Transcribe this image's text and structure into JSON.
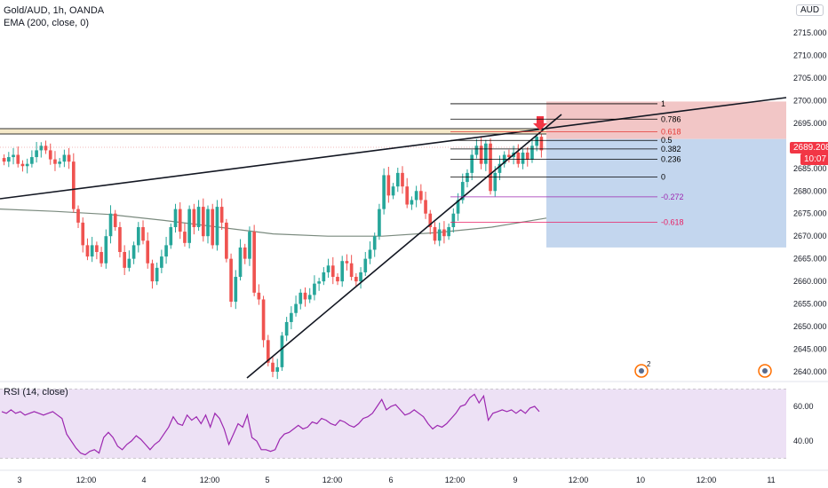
{
  "header": {
    "symbol_line": "Gold/AUD, 1h, OANDA",
    "ema_line": "EMA (200, close, 0)",
    "rsi_line": "RSI (14, close)",
    "currency_button": "AUD"
  },
  "price_axis": {
    "ticks": [
      "2715.000",
      "2710.000",
      "2705.000",
      "2700.000",
      "2695.000",
      "2685.000",
      "2680.000",
      "2675.000",
      "2670.000",
      "2665.000",
      "2660.000",
      "2655.000",
      "2650.000",
      "2645.000",
      "2640.000"
    ],
    "current_price_label": "2689.208",
    "countdown_label": "10:07"
  },
  "rsi_axis": {
    "ticks": [
      "60.00",
      "40.00"
    ]
  },
  "time_axis": {
    "labels": [
      "3",
      "12:00",
      "4",
      "12:00",
      "5",
      "12:00",
      "6",
      "12:00",
      "9",
      "12:00",
      "10",
      "12:00",
      "11"
    ]
  },
  "fib_levels": [
    {
      "label": "1",
      "price": 2699.3,
      "color": "#000000"
    },
    {
      "label": "0.786",
      "price": 2695.9,
      "color": "#000000"
    },
    {
      "label": "0.618",
      "price": 2693.1,
      "color": "#e53935"
    },
    {
      "label": "0.5",
      "price": 2691.2,
      "color": "#000000"
    },
    {
      "label": "0.382",
      "price": 2689.3,
      "color": "#000000"
    },
    {
      "label": "0.236",
      "price": 2687.0,
      "color": "#000000"
    },
    {
      "label": "0",
      "price": 2683.1,
      "color": "#000000"
    },
    {
      "label": "-0.272",
      "price": 2678.7,
      "color": "#9c27b0"
    },
    {
      "label": "-0.618",
      "price": 2673.1,
      "color": "#e91e63"
    }
  ],
  "markers": {
    "event_badge_count": "2"
  },
  "colors": {
    "bull": "#26a69a",
    "bear": "#ef5350",
    "ema": "#7a8a7e",
    "rsi": "#9c27b0",
    "stop_zone": "#f2c6c6",
    "target_zone": "#c3d6ee",
    "price_label": "#f23645"
  },
  "chart_data": [
    {
      "type": "candlestick",
      "title": "Gold/AUD, 1h, OANDA",
      "ylim": [
        2637,
        2720
      ],
      "x": [
        "3",
        "12:00",
        "4",
        "12:00",
        "5",
        "12:00",
        "6",
        "12:00",
        "9",
        "12:00",
        "10",
        "12:00",
        "11"
      ],
      "ohlc_approx": {
        "close": [
          2686.5,
          2687.5,
          2688.0,
          2686.0,
          2685.5,
          2686.0,
          2687.5,
          2689.0,
          2690.0,
          2689.0,
          2687.0,
          2686.0,
          2686.5,
          2688.0,
          2686.5,
          2676.0,
          2673.0,
          2668.0,
          2665.5,
          2668.0,
          2666.5,
          2664.0,
          2670.0,
          2675.0,
          2672.0,
          2666.5,
          2663.0,
          2665.0,
          2668.0,
          2672.0,
          2669.0,
          2664.0,
          2660.0,
          2663.0,
          2665.5,
          2668.0,
          2672.0,
          2676.0,
          2671.0,
          2668.5,
          2676.0,
          2672.0,
          2676.5,
          2670.0,
          2676.0,
          2668.0,
          2676.5,
          2673.0,
          2665.0,
          2655.5,
          2661.0,
          2667.5,
          2665.0,
          2671.0,
          2657.5,
          2656.0,
          2647.0,
          2642.0,
          2640.0,
          2641.0,
          2648.0,
          2651.0,
          2653.0,
          2655.0,
          2657.5,
          2656.0,
          2657.0,
          2659.5,
          2660.0,
          2662.0,
          2663.5,
          2661.0,
          2660.0,
          2664.5,
          2664.0,
          2661.0,
          2660.0,
          2662.0,
          2665.0,
          2667.0,
          2670.0,
          2676.0,
          2683.5,
          2679.0,
          2681.0,
          2684.0,
          2681.0,
          2677.0,
          2678.0,
          2680.0,
          2678.0,
          2675.0,
          2672.0,
          2669.0,
          2671.5,
          2670.0,
          2672.0,
          2675.0,
          2678.0,
          2682.0,
          2684.0,
          2688.0,
          2690.0,
          2686.0,
          2690.5,
          2680.0,
          2684.0,
          2686.0,
          2688.0,
          2687.5,
          2688.5,
          2686.0,
          2688.5,
          2687.0,
          2690.0,
          2692.0,
          2689.0
        ]
      },
      "series": [
        {
          "name": "EMA (200, close, 0)",
          "type": "line",
          "values_approx": [
            2676.0,
            2675.5,
            2674.8,
            2673.5,
            2672.0,
            2670.5,
            2670.0,
            2670.0,
            2670.8,
            2672.0,
            2674.0
          ]
        }
      ],
      "annotations": {
        "fibonacci": [
          "1",
          "0.786",
          "0.618",
          "0.5",
          "0.382",
          "0.236",
          "0",
          "-0.272",
          "-0.618"
        ],
        "trendlines": 3,
        "short_position": {
          "entry": 2691.5,
          "stop": 2699.8,
          "target": 2667.5
        },
        "last_price": 2689.208
      }
    },
    {
      "type": "line",
      "title": "RSI (14, close)",
      "ylim": [
        28,
        72
      ],
      "yticks": [
        60,
        40
      ],
      "values_approx": [
        57,
        56,
        58,
        56,
        57,
        55,
        56,
        57,
        56,
        55,
        56,
        57,
        55,
        53,
        44,
        40,
        36,
        33,
        32,
        34,
        35,
        33,
        42,
        45,
        42,
        37,
        35,
        38,
        40,
        43,
        41,
        38,
        35,
        38,
        40,
        44,
        48,
        54,
        50,
        49,
        55,
        52,
        54,
        50,
        55,
        48,
        56,
        53,
        47,
        38,
        44,
        50,
        48,
        55,
        42,
        40,
        35,
        35,
        34,
        35,
        41,
        44,
        45,
        47,
        49,
        47,
        48,
        51,
        50,
        53,
        52,
        50,
        49,
        52,
        51,
        49,
        48,
        50,
        53,
        54,
        56,
        60,
        64,
        58,
        60,
        61,
        58,
        55,
        56,
        58,
        56,
        54,
        50,
        47,
        49,
        48,
        50,
        53,
        56,
        60,
        61,
        65,
        67,
        62,
        66,
        52,
        56,
        57,
        58,
        57,
        58,
        56,
        58,
        56,
        59,
        60,
        57
      ]
    }
  ]
}
